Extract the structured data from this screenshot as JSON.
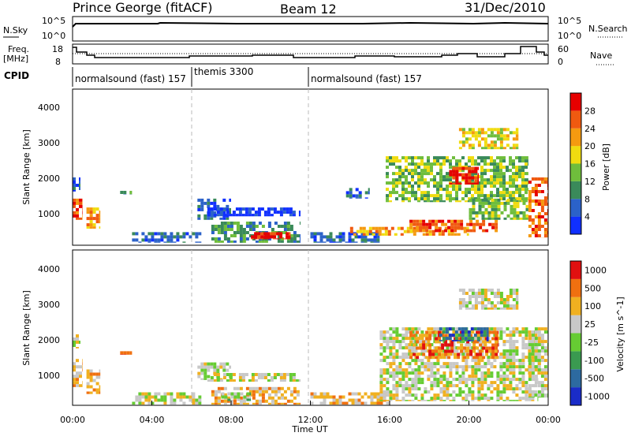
{
  "header": {
    "station": "Prince George (fitACF)",
    "beam": "Beam 12",
    "date": "31/Dec/2010"
  },
  "panels": {
    "nsky": {
      "label": "N.Sky",
      "ticks": [
        "10^5",
        "10^0"
      ],
      "right_label": "N.Search",
      "right_ticks": [
        "10^5",
        "10^0"
      ]
    },
    "freq": {
      "label_line1": "Freq.",
      "label_line2": "[MHz]",
      "ticks": [
        "18",
        "8"
      ],
      "right_label": "Nave",
      "right_ticks": [
        "60",
        "0"
      ]
    },
    "cpid": {
      "label": "CPID",
      "segments": [
        {
          "text": "normalsound (fast) 157",
          "start_hour": 0
        },
        {
          "text": "themis 3300",
          "start_hour": 6
        },
        {
          "text": "normalsound (fast) 157",
          "start_hour": 12
        }
      ]
    }
  },
  "axes": {
    "x_label": "Time UT",
    "x_ticks": [
      "00:00",
      "04:00",
      "08:00",
      "12:00",
      "16:00",
      "20:00",
      "00:00"
    ],
    "y_label": "Slant Range [km]",
    "y_ticks": [
      "1000",
      "2000",
      "3000",
      "4000"
    ]
  },
  "chart_data": [
    {
      "type": "heatmap",
      "name": "Power",
      "xlabel": "Time UT",
      "ylabel": "Slant Range [km]",
      "xlim": [
        0,
        24
      ],
      "ylim": [
        180,
        4600
      ],
      "colorbar": {
        "label": "Power [dB]",
        "ticks": [
          "4",
          "8",
          "12",
          "16",
          "20",
          "24",
          "28"
        ],
        "colors": [
          "#1030ff",
          "#2b62c9",
          "#3a8a5a",
          "#6fbd3c",
          "#f0dc10",
          "#f59a10",
          "#f05a10",
          "#e60000"
        ]
      },
      "regions": [
        {
          "t": [
            0.0,
            0.5
          ],
          "r": [
            900,
            1500
          ],
          "level": 6
        },
        {
          "t": [
            0.0,
            0.4
          ],
          "r": [
            1700,
            2100
          ],
          "level": 1
        },
        {
          "t": [
            0.7,
            1.4
          ],
          "r": [
            650,
            1250
          ],
          "level": 5
        },
        {
          "t": [
            2.4,
            3.0
          ],
          "r": [
            1620,
            1720
          ],
          "level": 2
        },
        {
          "t": [
            3.0,
            6.5
          ],
          "r": [
            250,
            550
          ],
          "level": 1
        },
        {
          "t": [
            6.3,
            8.0
          ],
          "r": [
            900,
            1500
          ],
          "level": 1
        },
        {
          "t": [
            6.8,
            11.5
          ],
          "r": [
            1000,
            1250
          ],
          "level": 0
        },
        {
          "t": [
            7.0,
            11.5
          ],
          "r": [
            250,
            850
          ],
          "level": 2
        },
        {
          "t": [
            9.0,
            11.0
          ],
          "r": [
            350,
            550
          ],
          "level": 7
        },
        {
          "t": [
            12.0,
            15.5
          ],
          "r": [
            250,
            550
          ],
          "level": 1
        },
        {
          "t": [
            13.8,
            15.0
          ],
          "r": [
            1500,
            1800
          ],
          "level": 1
        },
        {
          "t": [
            14.0,
            20.0
          ],
          "r": [
            450,
            700
          ],
          "level": 5
        },
        {
          "t": [
            17.0,
            21.5
          ],
          "r": [
            550,
            900
          ],
          "level": 6
        },
        {
          "t": [
            15.8,
            23.0
          ],
          "r": [
            1400,
            2700
          ],
          "level": 3
        },
        {
          "t": [
            19.0,
            20.5
          ],
          "r": [
            1900,
            2400
          ],
          "level": 7
        },
        {
          "t": [
            20.0,
            23.0
          ],
          "r": [
            900,
            1500
          ],
          "level": 3
        },
        {
          "t": [
            23.0,
            24.0
          ],
          "r": [
            400,
            2100
          ],
          "level": 6
        },
        {
          "t": [
            19.5,
            22.5
          ],
          "r": [
            2900,
            3500
          ],
          "level": 4
        }
      ]
    },
    {
      "type": "heatmap",
      "name": "Velocity",
      "xlabel": "Time UT",
      "ylabel": "Slant Range [km]",
      "xlim": [
        0,
        24
      ],
      "ylim": [
        180,
        4600
      ],
      "colorbar": {
        "label": "Velocity [m s^-1]",
        "ticks": [
          "1000",
          "500",
          "100",
          "25",
          "-25",
          "-100",
          "-500",
          "-1000"
        ],
        "colors": [
          "#1a2cc8",
          "#2d6aa0",
          "#3a9a50",
          "#66cc33",
          "#c8c8c8",
          "#f0b020",
          "#f07010",
          "#e01010"
        ]
      },
      "regions": [
        {
          "t": [
            0.0,
            0.5
          ],
          "r": [
            700,
            1500
          ],
          "level": 5
        },
        {
          "t": [
            0.0,
            0.4
          ],
          "r": [
            1800,
            2200
          ],
          "level": 4
        },
        {
          "t": [
            0.7,
            1.4
          ],
          "r": [
            500,
            1200
          ],
          "level": 5
        },
        {
          "t": [
            2.4,
            3.0
          ],
          "r": [
            1620,
            1720
          ],
          "level": 6
        },
        {
          "t": [
            3.0,
            6.5
          ],
          "r": [
            200,
            550
          ],
          "level": 4
        },
        {
          "t": [
            6.3,
            8.0
          ],
          "r": [
            900,
            1400
          ],
          "level": 4
        },
        {
          "t": [
            6.8,
            11.5
          ],
          "r": [
            850,
            1100
          ],
          "level": 4
        },
        {
          "t": [
            7.0,
            11.5
          ],
          "r": [
            200,
            700
          ],
          "level": 5
        },
        {
          "t": [
            7.5,
            9.0
          ],
          "r": [
            300,
            550
          ],
          "level": 3
        },
        {
          "t": [
            12.0,
            16.0
          ],
          "r": [
            200,
            550
          ],
          "level": 5
        },
        {
          "t": [
            15.5,
            23.5
          ],
          "r": [
            300,
            2400
          ],
          "level": 4
        },
        {
          "t": [
            17.0,
            21.5
          ],
          "r": [
            1500,
            2300
          ],
          "level": 6
        },
        {
          "t": [
            18.5,
            21.0
          ],
          "r": [
            2000,
            2400
          ],
          "level": 1
        },
        {
          "t": [
            23.0,
            24.0
          ],
          "r": [
            400,
            2400
          ],
          "level": 4
        },
        {
          "t": [
            19.5,
            22.5
          ],
          "r": [
            2900,
            3500
          ],
          "level": 4
        }
      ]
    }
  ]
}
